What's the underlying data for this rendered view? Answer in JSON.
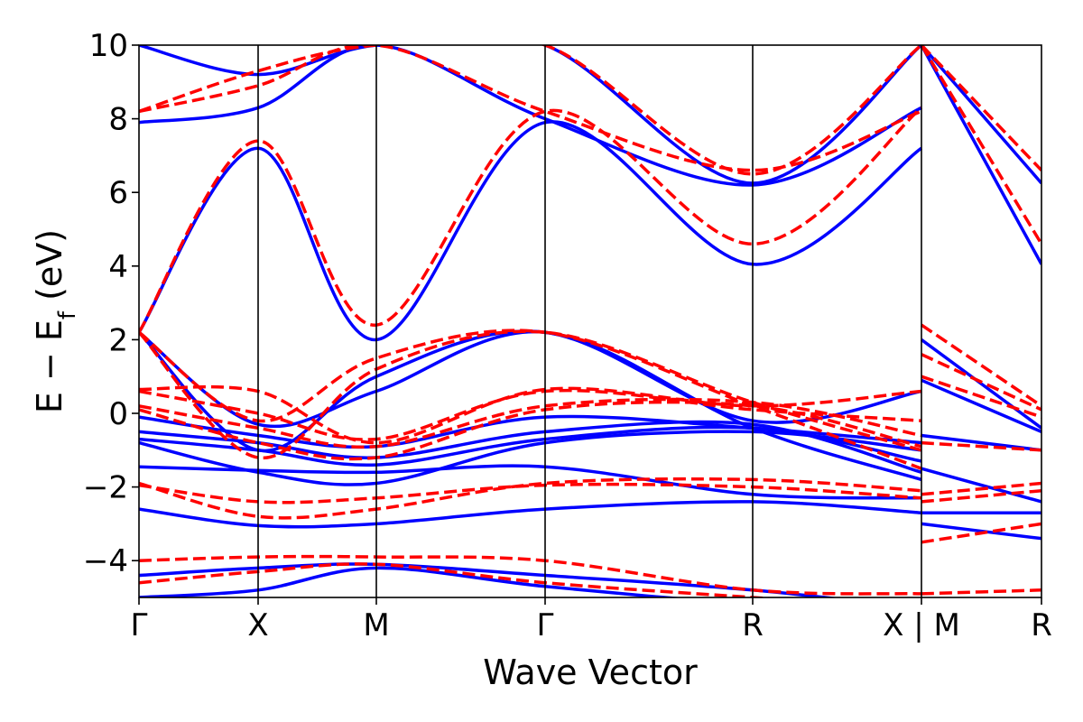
{
  "chart_data": {
    "type": "line",
    "xlabel": "Wave Vector",
    "ylabel": "E − E_f (eV)",
    "ylabel_parts": {
      "main": "E − E",
      "sub": "f",
      "unit": " (eV)"
    },
    "ylim": [
      -5,
      10
    ],
    "yticks": [
      -4,
      -2,
      0,
      2,
      4,
      6,
      8,
      10
    ],
    "ytick_labels": [
      "−4",
      "−2",
      "0",
      "2",
      "4",
      "6",
      "8",
      "10"
    ],
    "xlim": [
      0,
      1
    ],
    "high_symmetry_points": [
      {
        "label": "Γ",
        "x": 0.0
      },
      {
        "label": "X",
        "x": 0.132
      },
      {
        "label": "M",
        "x": 0.263
      },
      {
        "label": "Γ",
        "x": 0.45
      },
      {
        "label": "R",
        "x": 0.68
      },
      {
        "label": "X | M",
        "x": 0.867
      },
      {
        "label": "R",
        "x": 1.0
      }
    ],
    "grid": false,
    "legend": "none",
    "colors": {
      "series_a": "#0000ff",
      "series_b": "#ff0000"
    },
    "series": [
      {
        "style": "solid",
        "color": "#0000ff",
        "bands": [
          {
            "x": [
              0,
              0.132,
              0.263,
              0.45,
              0.68,
              0.867
            ],
            "y": [
              -5.0,
              -4.8,
              -4.2,
              -4.7,
              -5.2,
              -5.5
            ]
          },
          {
            "x": [
              0,
              0.132,
              0.263,
              0.45,
              0.68,
              0.867
            ],
            "y": [
              -4.4,
              -4.2,
              -4.1,
              -4.4,
              -4.8,
              -5.3
            ]
          },
          {
            "x": [
              0,
              0.132,
              0.263,
              0.45,
              0.68,
              0.867
            ],
            "y": [
              -2.6,
              -3.05,
              -3.0,
              -2.6,
              -2.4,
              -2.7
            ]
          },
          {
            "x": [
              0,
              0.132,
              0.263,
              0.45,
              0.68,
              0.867
            ],
            "y": [
              -1.45,
              -1.55,
              -1.6,
              -1.45,
              -2.2,
              -2.3
            ]
          },
          {
            "x": [
              0,
              0.132,
              0.263,
              0.45,
              0.68,
              0.867
            ],
            "y": [
              -0.8,
              -1.6,
              -1.9,
              -0.8,
              -0.5,
              -1.0
            ]
          },
          {
            "x": [
              0,
              0.132,
              0.263,
              0.45,
              0.68,
              0.867
            ],
            "y": [
              -0.7,
              -1.0,
              -1.4,
              -0.7,
              -0.4,
              -1.3
            ]
          },
          {
            "x": [
              0,
              0.132,
              0.263,
              0.45,
              0.68,
              0.867
            ],
            "y": [
              -0.5,
              -0.8,
              -1.2,
              -0.5,
              -0.3,
              -1.6
            ]
          },
          {
            "x": [
              0,
              0.132,
              0.263,
              0.45,
              0.68,
              0.867
            ],
            "y": [
              -0.1,
              -0.6,
              -0.9,
              -0.1,
              -0.4,
              -0.8
            ]
          },
          {
            "x": [
              0,
              0.132,
              0.263,
              0.45,
              0.68,
              0.867
            ],
            "y": [
              2.2,
              -0.3,
              0.6,
              2.2,
              -0.4,
              -1.8
            ]
          },
          {
            "x": [
              0,
              0.132,
              0.263,
              0.45,
              0.68,
              0.867
            ],
            "y": [
              2.2,
              -1.0,
              1.0,
              2.2,
              -0.2,
              0.6
            ]
          },
          {
            "x": [
              0,
              0.132,
              0.263,
              0.45,
              0.68,
              0.867
            ],
            "y": [
              2.2,
              7.2,
              2.0,
              7.9,
              4.05,
              7.2
            ]
          },
          {
            "x": [
              0,
              0.132,
              0.263,
              0.45,
              0.68,
              0.867
            ],
            "y": [
              7.9,
              8.3,
              10.0,
              8.0,
              6.2,
              8.3
            ]
          },
          {
            "x": [
              0,
              0.132,
              0.263,
              0.45,
              0.68,
              0.867
            ],
            "y": [
              10.0,
              9.2,
              10.0,
              10.0,
              6.25,
              10.0
            ]
          },
          {
            "x": [
              0.867,
              1.0
            ],
            "y": [
              2.0,
              -0.4
            ]
          },
          {
            "x": [
              0.867,
              1.0
            ],
            "y": [
              0.9,
              -0.5
            ]
          },
          {
            "x": [
              0.867,
              1.0
            ],
            "y": [
              -0.6,
              -1.0
            ]
          },
          {
            "x": [
              0.867,
              1.0
            ],
            "y": [
              -1.5,
              -2.4
            ]
          },
          {
            "x": [
              0.867,
              1.0
            ],
            "y": [
              -2.7,
              -2.7
            ]
          },
          {
            "x": [
              0.867,
              1.0
            ],
            "y": [
              -3.0,
              -3.4
            ]
          },
          {
            "x": [
              0.867,
              1.0
            ],
            "y": [
              10.0,
              4.05
            ]
          },
          {
            "x": [
              0.867,
              1.0
            ],
            "y": [
              10.0,
              6.25
            ]
          }
        ]
      },
      {
        "style": "dashed",
        "color": "#ff0000",
        "bands": [
          {
            "x": [
              0,
              0.132,
              0.263,
              0.45,
              0.68,
              0.867
            ],
            "y": [
              -4.6,
              -4.3,
              -4.1,
              -4.6,
              -5.0,
              -5.3
            ]
          },
          {
            "x": [
              0,
              0.132,
              0.263,
              0.45,
              0.68,
              0.867
            ],
            "y": [
              -4.0,
              -3.9,
              -3.9,
              -4.0,
              -4.8,
              -4.9
            ]
          },
          {
            "x": [
              0,
              0.132,
              0.263,
              0.45,
              0.68,
              0.867
            ],
            "y": [
              -1.95,
              -2.4,
              -2.3,
              -1.95,
              -2.0,
              -2.3
            ]
          },
          {
            "x": [
              0,
              0.132,
              0.263,
              0.45,
              0.68,
              0.867
            ],
            "y": [
              -1.9,
              -2.8,
              -2.6,
              -1.9,
              -1.8,
              -2.1
            ]
          },
          {
            "x": [
              0,
              0.132,
              0.263,
              0.45,
              0.68,
              0.867
            ],
            "y": [
              0.1,
              -0.8,
              -1.2,
              0.1,
              0.2,
              -0.9
            ]
          },
          {
            "x": [
              0,
              0.132,
              0.263,
              0.45,
              0.68,
              0.867
            ],
            "y": [
              0.2,
              -0.4,
              -0.9,
              0.2,
              0.3,
              -0.6
            ]
          },
          {
            "x": [
              0,
              0.132,
              0.263,
              0.45,
              0.68,
              0.867
            ],
            "y": [
              0.6,
              0.0,
              -0.7,
              0.6,
              0.1,
              -0.2
            ]
          },
          {
            "x": [
              0,
              0.132,
              0.263,
              0.45,
              0.68,
              0.867
            ],
            "y": [
              0.65,
              0.6,
              -0.8,
              0.65,
              0.2,
              0.6
            ]
          },
          {
            "x": [
              0,
              0.132,
              0.263,
              0.45,
              0.68,
              0.867
            ],
            "y": [
              2.2,
              -1.2,
              1.2,
              2.2,
              0.3,
              -1.0
            ]
          },
          {
            "x": [
              0,
              0.132,
              0.263,
              0.45,
              0.68,
              0.867
            ],
            "y": [
              2.2,
              -0.2,
              1.5,
              2.2,
              0.2,
              -1.5
            ]
          },
          {
            "x": [
              0,
              0.132,
              0.263,
              0.45,
              0.68,
              0.867
            ],
            "y": [
              2.2,
              7.4,
              2.4,
              8.2,
              4.6,
              8.3
            ]
          },
          {
            "x": [
              0,
              0.132,
              0.263,
              0.45,
              0.68,
              0.867
            ],
            "y": [
              8.2,
              8.9,
              10.0,
              8.2,
              6.6,
              8.2
            ]
          },
          {
            "x": [
              0,
              0.132,
              0.263,
              0.45,
              0.68,
              0.867
            ],
            "y": [
              8.2,
              9.3,
              10.0,
              10.0,
              6.5,
              10.0
            ]
          },
          {
            "x": [
              0.867,
              1.0
            ],
            "y": [
              2.4,
              0.2
            ]
          },
          {
            "x": [
              0.867,
              1.0
            ],
            "y": [
              1.6,
              0.1
            ]
          },
          {
            "x": [
              0.867,
              1.0
            ],
            "y": [
              1.0,
              -0.1
            ]
          },
          {
            "x": [
              0.867,
              1.0
            ],
            "y": [
              -0.8,
              -1.0
            ]
          },
          {
            "x": [
              0.867,
              1.0
            ],
            "y": [
              -2.2,
              -1.9
            ]
          },
          {
            "x": [
              0.867,
              1.0
            ],
            "y": [
              -2.4,
              -2.1
            ]
          },
          {
            "x": [
              0.867,
              1.0
            ],
            "y": [
              -3.5,
              -3.0
            ]
          },
          {
            "x": [
              0.867,
              1.0
            ],
            "y": [
              -4.9,
              -4.8
            ]
          },
          {
            "x": [
              0.867,
              1.0
            ],
            "y": [
              10.0,
              4.6
            ]
          },
          {
            "x": [
              0.867,
              1.0
            ],
            "y": [
              10.0,
              6.6
            ]
          }
        ]
      }
    ]
  }
}
